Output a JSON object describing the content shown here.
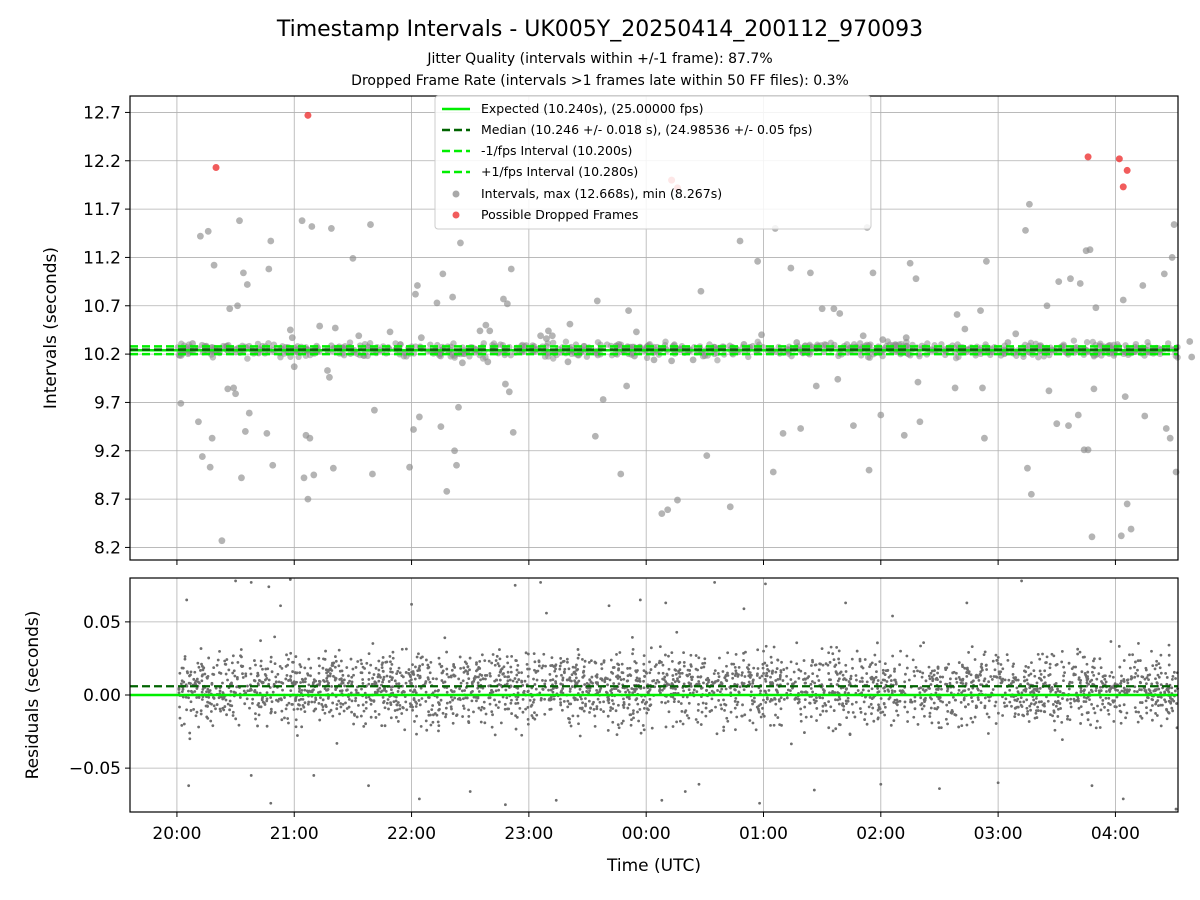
{
  "chart_data": [
    {
      "type": "scatter",
      "title": "Timestamp Intervals - UK005Y_20250414_200112_970093",
      "subtitle_lines": [
        "Jitter Quality (intervals within +/-1 frame): 87.7%",
        "Dropped Frame Rate (intervals >1 frames late within 50 FF files): 0.3%"
      ],
      "ylabel": "Intervals (seconds)",
      "xlim": [
        "19:36",
        "04:32"
      ],
      "ylim": [
        8.07,
        12.87
      ],
      "yticks": [
        "8.2",
        "8.7",
        "9.2",
        "9.7",
        "10.2",
        "10.7",
        "11.2",
        "11.7",
        "12.2",
        "12.7"
      ],
      "grid": true,
      "legend_position": "top-center",
      "lines": [
        {
          "name": "Expected (10.240s), (25.00000 fps)",
          "y": 10.24,
          "style": "solid",
          "color": "#00ee00"
        },
        {
          "name": "Median (10.246 +/- 0.018 s), (24.98536 +/- 0.05 fps)",
          "y": 10.246,
          "style": "dashed",
          "color": "#006400"
        },
        {
          "name": "-1/fps Interval (10.200s)",
          "y": 10.2,
          "style": "dashed",
          "color": "#00ee00"
        },
        {
          "name": "+1/fps Interval (10.280s)",
          "y": 10.28,
          "style": "dashed",
          "color": "#00ee00"
        }
      ],
      "series": [
        {
          "name": "Intervals, max (12.668s), min (8.267s)",
          "color": "#8c8c8c",
          "points": [
            [
              "20:02",
              9.69
            ],
            [
              "20:08",
              10.31
            ],
            [
              "20:11",
              9.5
            ],
            [
              "20:12",
              11.42
            ],
            [
              "20:13",
              9.14
            ],
            [
              "20:16",
              11.47
            ],
            [
              "20:17",
              9.03
            ],
            [
              "20:18",
              9.33
            ],
            [
              "20:19",
              11.12
            ],
            [
              "20:23",
              8.27
            ],
            [
              "20:26",
              9.84
            ],
            [
              "20:27",
              10.67
            ],
            [
              "20:29",
              9.85
            ],
            [
              "20:30",
              9.79
            ],
            [
              "20:31",
              10.7
            ],
            [
              "20:32",
              11.58
            ],
            [
              "20:33",
              8.92
            ],
            [
              "20:34",
              11.04
            ],
            [
              "20:35",
              9.4
            ],
            [
              "20:36",
              10.92
            ],
            [
              "20:37",
              9.59
            ],
            [
              "20:46",
              9.38
            ],
            [
              "20:47",
              11.08
            ],
            [
              "20:48",
              11.37
            ],
            [
              "20:49",
              9.05
            ],
            [
              "20:58",
              10.45
            ],
            [
              "20:59",
              10.37
            ],
            [
              "21:00",
              10.07
            ],
            [
              "21:04",
              11.58
            ],
            [
              "21:05",
              8.92
            ],
            [
              "21:06",
              9.36
            ],
            [
              "21:07",
              8.7
            ],
            [
              "21:08",
              9.33
            ],
            [
              "21:09",
              11.52
            ],
            [
              "21:10",
              8.95
            ],
            [
              "21:13",
              10.49
            ],
            [
              "21:17",
              10.03
            ],
            [
              "21:18",
              9.96
            ],
            [
              "21:19",
              11.5
            ],
            [
              "21:20",
              9.02
            ],
            [
              "21:21",
              10.47
            ],
            [
              "21:30",
              11.19
            ],
            [
              "21:33",
              10.39
            ],
            [
              "21:39",
              11.54
            ],
            [
              "21:40",
              8.96
            ],
            [
              "21:41",
              9.62
            ],
            [
              "21:49",
              10.43
            ],
            [
              "21:59",
              9.03
            ],
            [
              "22:01",
              9.42
            ],
            [
              "22:02",
              10.82
            ],
            [
              "22:03",
              10.91
            ],
            [
              "22:04",
              9.55
            ],
            [
              "22:05",
              10.37
            ],
            [
              "22:13",
              10.73
            ],
            [
              "22:15",
              9.45
            ],
            [
              "22:16",
              11.03
            ],
            [
              "22:18",
              8.78
            ],
            [
              "22:21",
              10.79
            ],
            [
              "22:22",
              9.2
            ],
            [
              "22:23",
              9.05
            ],
            [
              "22:24",
              9.65
            ],
            [
              "22:25",
              11.35
            ],
            [
              "22:26",
              10.11
            ],
            [
              "22:35",
              10.44
            ],
            [
              "22:38",
              10.5
            ],
            [
              "22:39",
              10.12
            ],
            [
              "22:40",
              10.44
            ],
            [
              "22:47",
              10.77
            ],
            [
              "22:48",
              9.89
            ],
            [
              "22:49",
              10.72
            ],
            [
              "22:50",
              9.81
            ],
            [
              "22:51",
              11.08
            ],
            [
              "22:52",
              9.39
            ],
            [
              "23:06",
              10.39
            ],
            [
              "23:09",
              10.36
            ],
            [
              "23:10",
              10.44
            ],
            [
              "23:12",
              10.39
            ],
            [
              "23:20",
              10.12
            ],
            [
              "23:21",
              10.51
            ],
            [
              "23:34",
              9.35
            ],
            [
              "23:35",
              10.75
            ],
            [
              "23:38",
              9.73
            ],
            [
              "23:46",
              10.3
            ],
            [
              "23:47",
              8.96
            ],
            [
              "23:50",
              9.87
            ],
            [
              "23:51",
              10.65
            ],
            [
              "23:54",
              10.18
            ],
            [
              "23:55",
              10.43
            ],
            [
              "24:04",
              10.14
            ],
            [
              "24:08",
              8.55
            ],
            [
              "24:11",
              8.59
            ],
            [
              "24:13",
              10.13
            ],
            [
              "24:16",
              8.69
            ],
            [
              "24:24",
              10.14
            ],
            [
              "24:28",
              10.85
            ],
            [
              "24:31",
              9.15
            ],
            [
              "24:35",
              10.27
            ],
            [
              "24:43",
              8.62
            ],
            [
              "24:44",
              10.27
            ],
            [
              "24:48",
              11.37
            ],
            [
              "24:50",
              10.3
            ],
            [
              "24:53",
              10.27
            ],
            [
              "24:57",
              11.16
            ],
            [
              "24:59",
              10.4
            ],
            [
              "25:05",
              8.98
            ],
            [
              "25:06",
              11.5
            ],
            [
              "25:10",
              9.38
            ],
            [
              "25:14",
              11.09
            ],
            [
              "25:17",
              10.32
            ],
            [
              "25:19",
              9.43
            ],
            [
              "25:24",
              11.04
            ],
            [
              "25:27",
              9.87
            ],
            [
              "25:30",
              10.67
            ],
            [
              "25:36",
              10.67
            ],
            [
              "25:38",
              9.94
            ],
            [
              "25:39",
              10.62
            ],
            [
              "25:46",
              9.46
            ],
            [
              "25:51",
              10.39
            ],
            [
              "25:53",
              11.51
            ],
            [
              "25:54",
              9.0
            ],
            [
              "25:56",
              11.04
            ],
            [
              "26:00",
              9.57
            ],
            [
              "26:01",
              10.35
            ],
            [
              "26:12",
              9.36
            ],
            [
              "26:13",
              10.37
            ],
            [
              "26:15",
              11.14
            ],
            [
              "26:18",
              10.98
            ],
            [
              "26:19",
              9.91
            ],
            [
              "26:20",
              9.5
            ],
            [
              "26:38",
              9.85
            ],
            [
              "26:39",
              10.61
            ],
            [
              "26:43",
              10.46
            ],
            [
              "26:51",
              10.65
            ],
            [
              "26:52",
              9.85
            ],
            [
              "26:53",
              9.33
            ],
            [
              "26:54",
              11.16
            ],
            [
              "27:05",
              10.32
            ],
            [
              "27:09",
              10.41
            ],
            [
              "27:14",
              11.48
            ],
            [
              "27:15",
              9.02
            ],
            [
              "27:16",
              11.75
            ],
            [
              "27:17",
              8.75
            ],
            [
              "27:25",
              10.7
            ],
            [
              "27:26",
              9.82
            ],
            [
              "27:30",
              9.48
            ],
            [
              "27:31",
              10.95
            ],
            [
              "27:36",
              9.46
            ],
            [
              "27:37",
              10.98
            ],
            [
              "27:41",
              9.57
            ],
            [
              "27:42",
              10.93
            ],
            [
              "27:44",
              9.21
            ],
            [
              "27:45",
              11.27
            ],
            [
              "27:46",
              9.21
            ],
            [
              "27:47",
              11.28
            ],
            [
              "27:48",
              8.31
            ],
            [
              "27:49",
              9.84
            ],
            [
              "27:50",
              10.68
            ],
            [
              "28:03",
              8.32
            ],
            [
              "28:04",
              10.76
            ],
            [
              "28:05",
              9.76
            ],
            [
              "28:06",
              8.65
            ],
            [
              "28:08",
              8.39
            ],
            [
              "28:14",
              10.91
            ],
            [
              "28:15",
              9.56
            ],
            [
              "28:25",
              11.03
            ],
            [
              "28:26",
              9.43
            ],
            [
              "28:28",
              9.33
            ],
            [
              "28:29",
              11.2
            ],
            [
              "28:30",
              11.54
            ],
            [
              "28:31",
              8.98
            ],
            [
              "28:38",
              10.33
            ],
            [
              "28:39",
              10.17
            ],
            [
              "28:45",
              10.03
            ],
            [
              "28:46",
              10.55
            ],
            [
              "28:47",
              9.93
            ]
          ]
        },
        {
          "name": "Possible Dropped Frames",
          "color": "#ee3333",
          "points": [
            [
              "20:20",
              12.13
            ],
            [
              "21:07",
              12.67
            ],
            [
              "24:13",
              12.0
            ],
            [
              "24:16",
              11.92
            ],
            [
              "27:46",
              12.24
            ],
            [
              "28:02",
              12.22
            ],
            [
              "28:04",
              11.93
            ],
            [
              "28:06",
              12.1
            ]
          ]
        }
      ]
    },
    {
      "type": "scatter",
      "ylabel": "Residuals (seconds)",
      "xlabel": "Time (UTC)",
      "xlim": [
        "19:36",
        "04:32"
      ],
      "ylim": [
        -0.08,
        0.08
      ],
      "xticks": [
        "20:00",
        "21:00",
        "22:00",
        "23:00",
        "00:00",
        "01:00",
        "02:00",
        "03:00",
        "04:00"
      ],
      "yticks": [
        "−0.05",
        "0.00",
        "0.05"
      ],
      "grid": true,
      "lines": [
        {
          "y": 0.0,
          "style": "solid",
          "color": "#00ee00"
        },
        {
          "y": 0.006,
          "style": "dashed",
          "color": "#006400"
        }
      ],
      "series": [
        {
          "color": "#6e6e6e",
          "time_range": [
            "20:01",
            "04:32"
          ],
          "sample_interval_seconds": 10.24,
          "center": 0.005,
          "spread": 0.017,
          "outliers": [
            [
              "20:05",
              0.065
            ],
            [
              "20:06",
              -0.062
            ],
            [
              "20:30",
              0.078
            ],
            [
              "20:38",
              -0.055
            ],
            [
              "20:38",
              0.077
            ],
            [
              "20:47",
              0.074
            ],
            [
              "20:48",
              -0.074
            ],
            [
              "20:53",
              0.061
            ],
            [
              "20:58",
              0.079
            ],
            [
              "21:10",
              -0.055
            ],
            [
              "21:38",
              -0.062
            ],
            [
              "22:00",
              0.062
            ],
            [
              "22:04",
              -0.071
            ],
            [
              "22:30",
              -0.066
            ],
            [
              "22:48",
              -0.075
            ],
            [
              "22:53",
              0.075
            ],
            [
              "23:06",
              0.077
            ],
            [
              "23:09",
              0.056
            ],
            [
              "23:14",
              -0.072
            ],
            [
              "23:41",
              0.061
            ],
            [
              "23:57",
              0.065
            ],
            [
              "24:08",
              -0.072
            ],
            [
              "24:10",
              0.063
            ],
            [
              "24:20",
              -0.066
            ],
            [
              "24:27",
              -0.061
            ],
            [
              "24:35",
              0.077
            ],
            [
              "24:50",
              0.059
            ],
            [
              "24:58",
              -0.074
            ],
            [
              "25:01",
              0.076
            ],
            [
              "25:26",
              -0.065
            ],
            [
              "25:42",
              0.063
            ],
            [
              "26:00",
              -0.061
            ],
            [
              "26:06",
              0.054
            ],
            [
              "26:30",
              -0.064
            ],
            [
              "26:44",
              0.063
            ],
            [
              "27:00",
              -0.06
            ],
            [
              "27:12",
              0.078
            ],
            [
              "27:48",
              -0.062
            ],
            [
              "28:04",
              -0.071
            ],
            [
              "28:31",
              -0.078
            ]
          ]
        }
      ]
    }
  ]
}
